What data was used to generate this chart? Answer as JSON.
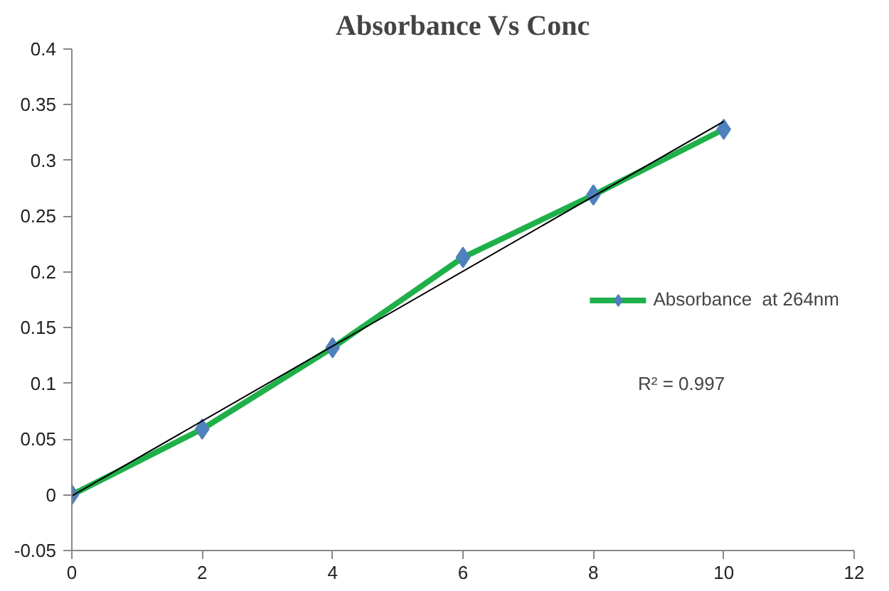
{
  "chart_data": {
    "type": "line",
    "title": "Absorbance Vs Conc",
    "x": [
      0,
      2,
      4,
      6,
      8,
      10
    ],
    "series": [
      {
        "name": "Absorbance  at 264nm",
        "color": "#1fb04a",
        "colors": [
          "#4f81bd",
          "#4f81bd",
          "#4f81bd",
          "#4f81bd",
          "#4f81bd",
          "#4f81bd"
        ],
        "values": [
          0,
          0.059,
          0.132,
          0.213,
          0.269,
          0.328
        ],
        "marker": "diamond"
      },
      {
        "type": "line",
        "color": "#000000",
        "x": [
          0,
          10
        ],
        "values": [
          -0.001,
          0.335
        ],
        "marker": "none"
      }
    ],
    "xlim": [
      0,
      12
    ],
    "xticks": [
      0,
      2,
      4,
      6,
      8,
      10,
      12
    ],
    "ylim": [
      -0.05,
      0.4
    ],
    "yticks": [
      -0.05,
      0,
      0.05,
      0.1,
      0.15,
      0.2,
      0.25,
      0.3,
      0.35,
      0.4
    ],
    "annotations": [
      "R² = 0.997"
    ],
    "legend": "right",
    "grid": false
  }
}
